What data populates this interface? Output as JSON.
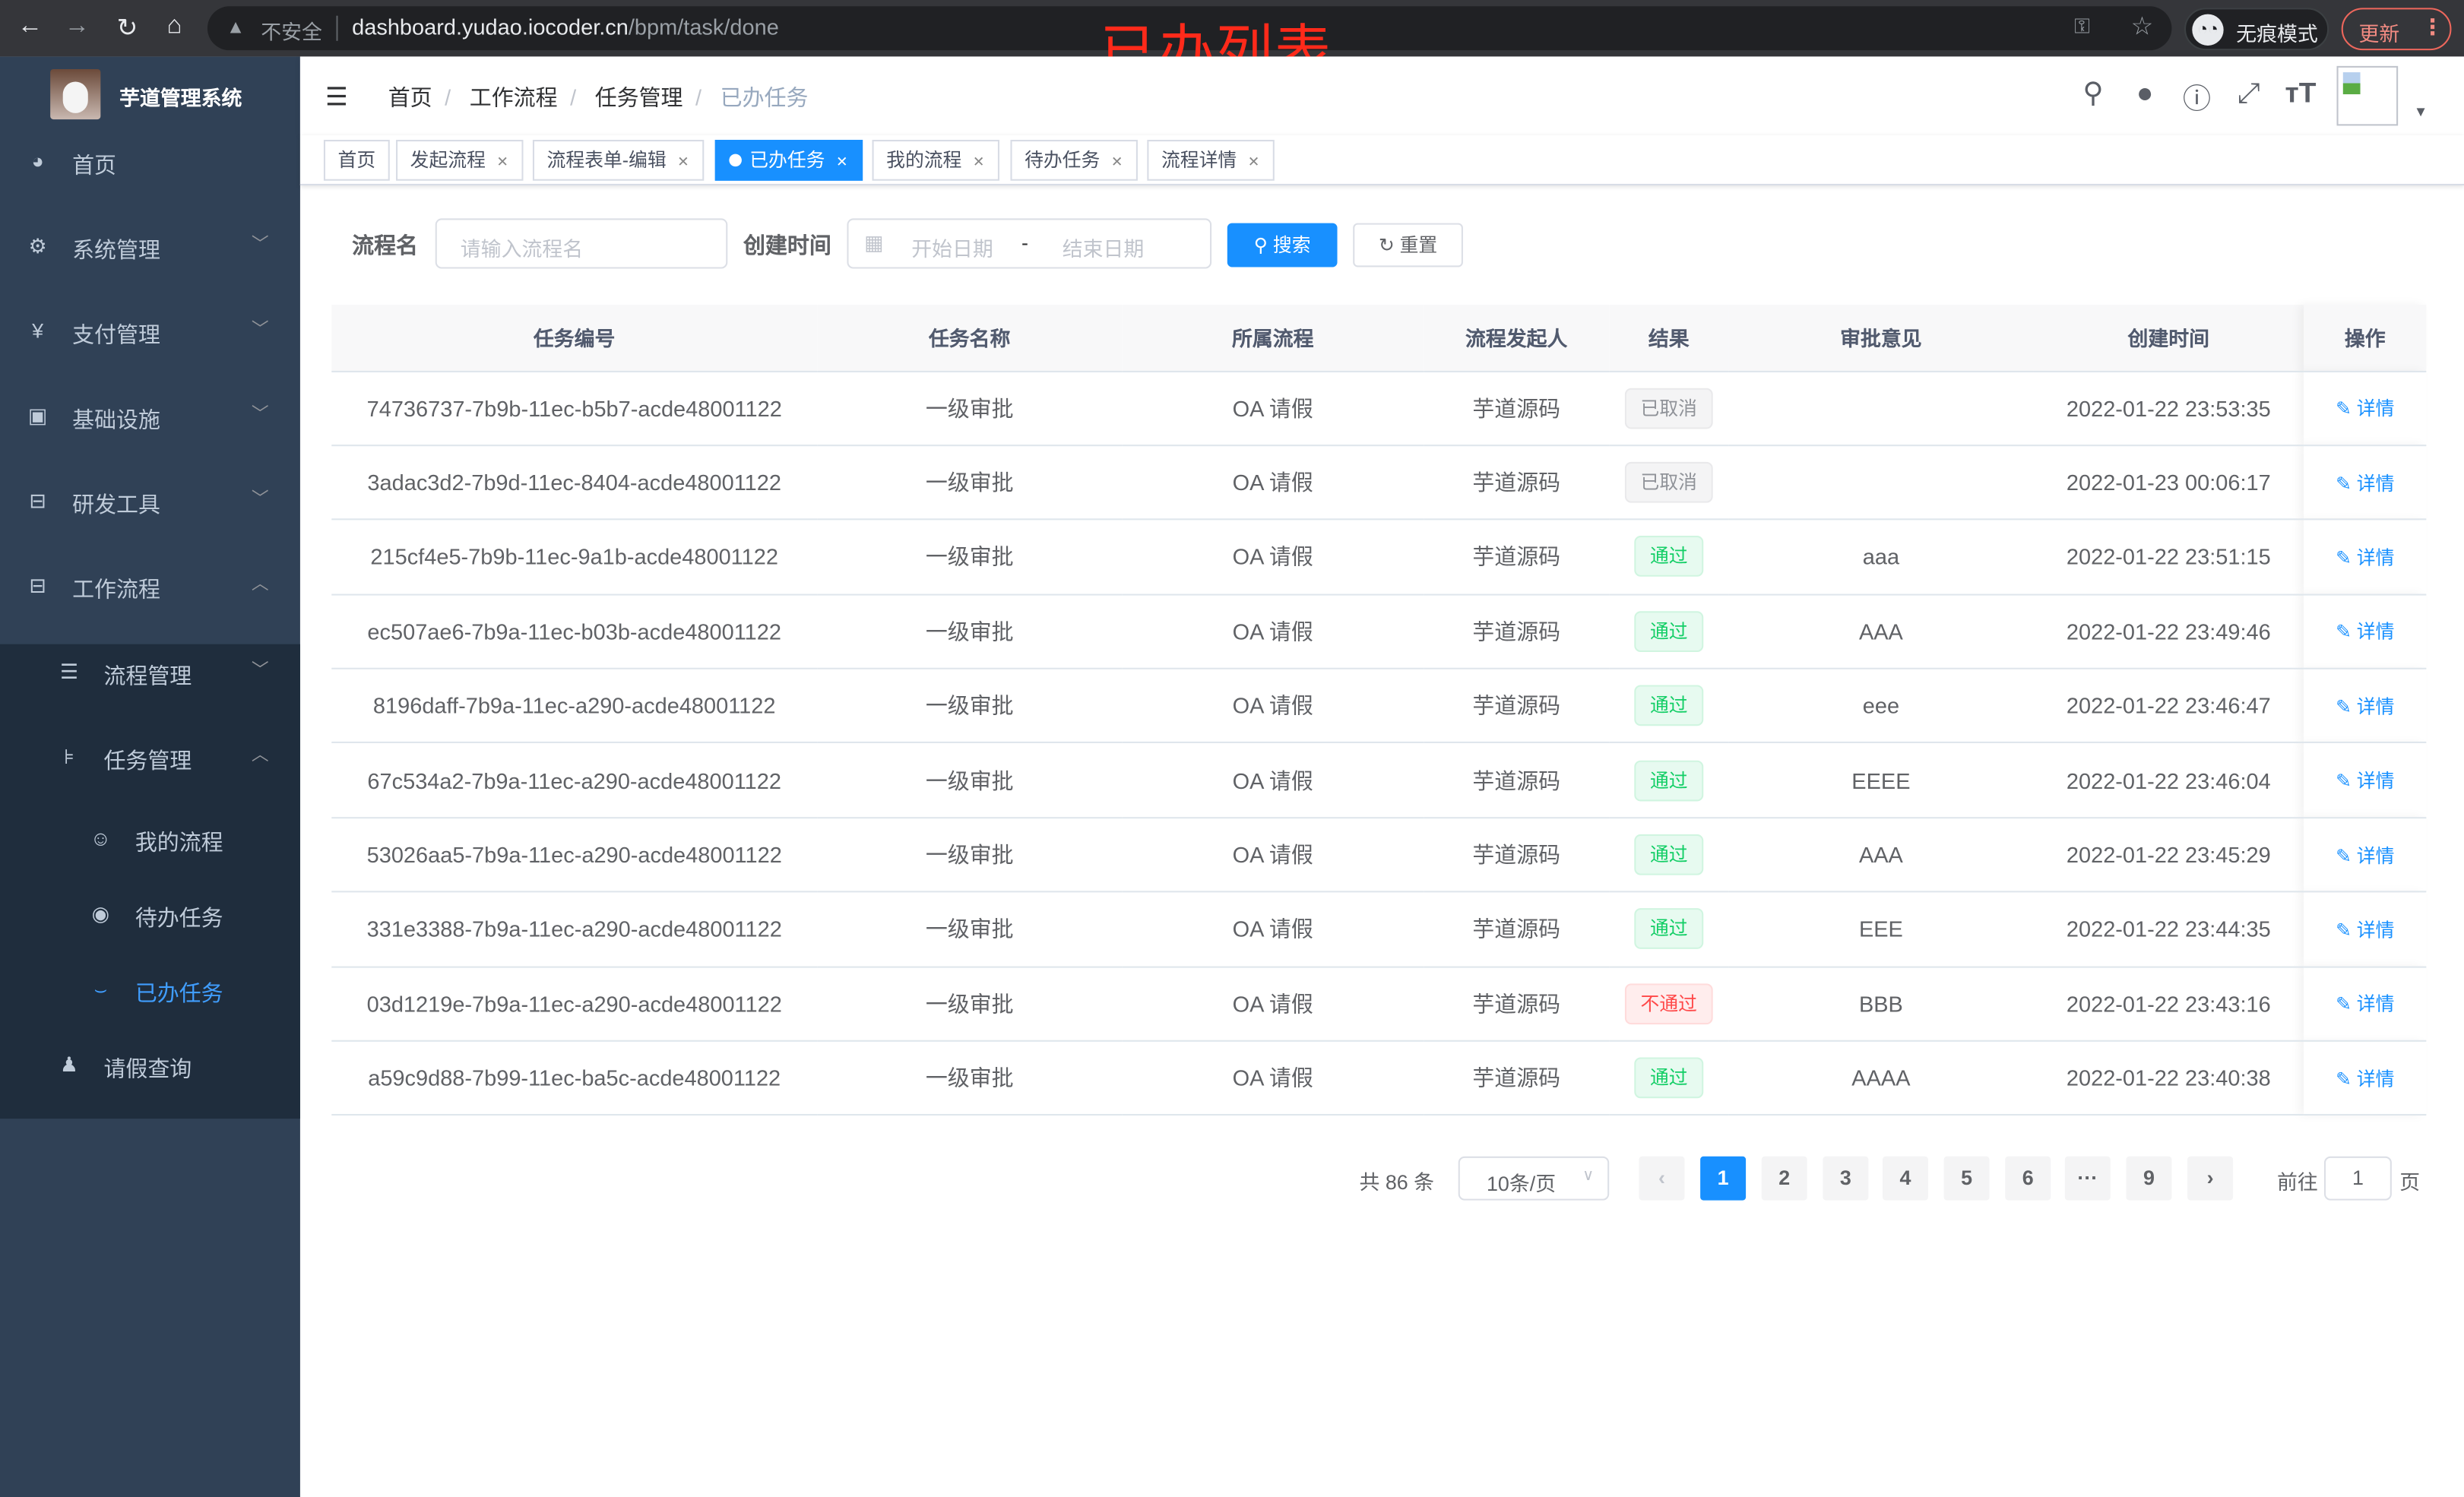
{
  "browser": {
    "insecure_label": "不安全",
    "url_host": "dashboard.yudao.iocoder.cn",
    "url_path": "/bpm/task/done",
    "incognito_label": "无痕模式",
    "update_label": "更新"
  },
  "annotation": "已办列表",
  "sidebar": {
    "brand": "芋道管理系统",
    "items": [
      {
        "label": "首页",
        "icon": "dashboard-icon",
        "glyph": "◕",
        "arrow": ""
      },
      {
        "label": "系统管理",
        "icon": "gear-icon",
        "glyph": "⚙",
        "arrow": "﹀"
      },
      {
        "label": "支付管理",
        "icon": "yen-icon",
        "glyph": "¥",
        "arrow": "﹀"
      },
      {
        "label": "基础设施",
        "icon": "monitor-icon",
        "glyph": "▣",
        "arrow": "﹀"
      },
      {
        "label": "研发工具",
        "icon": "toolbox-icon",
        "glyph": "⊟",
        "arrow": "﹀"
      },
      {
        "label": "工作流程",
        "icon": "toolbox-icon",
        "glyph": "⊟",
        "arrow": "︿"
      },
      {
        "label": "流程管理",
        "icon": "list-icon",
        "glyph": "☰",
        "arrow": "﹀"
      },
      {
        "label": "任务管理",
        "icon": "tree-icon",
        "glyph": "⊧",
        "arrow": "︿"
      },
      {
        "label": "我的流程",
        "icon": "people-icon",
        "glyph": "☺",
        "arrow": ""
      },
      {
        "label": "待办任务",
        "icon": "eye-icon",
        "glyph": "◉",
        "arrow": ""
      },
      {
        "label": "已办任务",
        "icon": "eye-closed-icon",
        "glyph": "⌣",
        "arrow": ""
      },
      {
        "label": "请假查询",
        "icon": "user-icon",
        "glyph": "♟",
        "arrow": ""
      }
    ]
  },
  "header": {
    "breadcrumb": [
      "首页",
      "工作流程",
      "任务管理",
      "已办任务"
    ],
    "icons": [
      "search-icon",
      "github-icon",
      "help-icon",
      "fullscreen-icon",
      "font-size-icon"
    ]
  },
  "tags": [
    {
      "label": "首页",
      "closable": false,
      "active": false
    },
    {
      "label": "发起流程",
      "closable": true,
      "active": false
    },
    {
      "label": "流程表单-编辑",
      "closable": true,
      "active": false
    },
    {
      "label": "已办任务",
      "closable": true,
      "active": true
    },
    {
      "label": "我的流程",
      "closable": true,
      "active": false
    },
    {
      "label": "待办任务",
      "closable": true,
      "active": false
    },
    {
      "label": "流程详情",
      "closable": true,
      "active": false
    }
  ],
  "search": {
    "name_label": "流程名",
    "name_placeholder": "请输入流程名",
    "time_label": "创建时间",
    "start_placeholder": "开始日期",
    "range_sep": "-",
    "end_placeholder": "结束日期",
    "search_button": "搜索",
    "reset_button": "重置"
  },
  "table": {
    "columns": [
      "任务编号",
      "任务名称",
      "所属流程",
      "流程发起人",
      "结果",
      "审批意见",
      "创建时间",
      "操作"
    ],
    "action_label": "详情",
    "rows": [
      {
        "id": "74736737-7b9b-11ec-b5b7-acde48001122",
        "name": "一级审批",
        "process": "OA 请假",
        "initiator": "芋道源码",
        "result": "已取消",
        "status": "cancel",
        "opinion": "",
        "time": "2022-01-22 23:53:35"
      },
      {
        "id": "3adac3d2-7b9d-11ec-8404-acde48001122",
        "name": "一级审批",
        "process": "OA 请假",
        "initiator": "芋道源码",
        "result": "已取消",
        "status": "cancel",
        "opinion": "",
        "time": "2022-01-23 00:06:17"
      },
      {
        "id": "215cf4e5-7b9b-11ec-9a1b-acde48001122",
        "name": "一级审批",
        "process": "OA 请假",
        "initiator": "芋道源码",
        "result": "通过",
        "status": "pass",
        "opinion": "aaa",
        "time": "2022-01-22 23:51:15"
      },
      {
        "id": "ec507ae6-7b9a-11ec-b03b-acde48001122",
        "name": "一级审批",
        "process": "OA 请假",
        "initiator": "芋道源码",
        "result": "通过",
        "status": "pass",
        "opinion": "AAA",
        "time": "2022-01-22 23:49:46"
      },
      {
        "id": "8196daff-7b9a-11ec-a290-acde48001122",
        "name": "一级审批",
        "process": "OA 请假",
        "initiator": "芋道源码",
        "result": "通过",
        "status": "pass",
        "opinion": "eee",
        "time": "2022-01-22 23:46:47"
      },
      {
        "id": "67c534a2-7b9a-11ec-a290-acde48001122",
        "name": "一级审批",
        "process": "OA 请假",
        "initiator": "芋道源码",
        "result": "通过",
        "status": "pass",
        "opinion": "EEEE",
        "time": "2022-01-22 23:46:04"
      },
      {
        "id": "53026aa5-7b9a-11ec-a290-acde48001122",
        "name": "一级审批",
        "process": "OA 请假",
        "initiator": "芋道源码",
        "result": "通过",
        "status": "pass",
        "opinion": "AAA",
        "time": "2022-01-22 23:45:29"
      },
      {
        "id": "331e3388-7b9a-11ec-a290-acde48001122",
        "name": "一级审批",
        "process": "OA 请假",
        "initiator": "芋道源码",
        "result": "通过",
        "status": "pass",
        "opinion": "EEE",
        "time": "2022-01-22 23:44:35"
      },
      {
        "id": "03d1219e-7b9a-11ec-a290-acde48001122",
        "name": "一级审批",
        "process": "OA 请假",
        "initiator": "芋道源码",
        "result": "不通过",
        "status": "reject",
        "opinion": "BBB",
        "time": "2022-01-22 23:43:16"
      },
      {
        "id": "a59c9d88-7b99-11ec-ba5c-acde48001122",
        "name": "一级审批",
        "process": "OA 请假",
        "initiator": "芋道源码",
        "result": "通过",
        "status": "pass",
        "opinion": "AAAA",
        "time": "2022-01-22 23:40:38"
      }
    ]
  },
  "status_colors": {
    "cancel": {
      "bg": "#f4f4f5",
      "border": "#e9e9eb",
      "text": "#909399"
    },
    "pass": {
      "bg": "#e7faf0",
      "border": "#d0f5e0",
      "text": "#13ce66"
    },
    "reject": {
      "bg": "#ffeded",
      "border": "#ffdbdb",
      "text": "#ff4949"
    }
  },
  "pagination": {
    "total_label": "共 86 条",
    "page_size": "10条/页",
    "pages": [
      "1",
      "2",
      "3",
      "4",
      "5",
      "6",
      "···",
      "9"
    ],
    "current_page": "1",
    "goto_label": "前往",
    "goto_value": "1",
    "page_suffix": "页"
  },
  "accent_color": "#1890ff"
}
